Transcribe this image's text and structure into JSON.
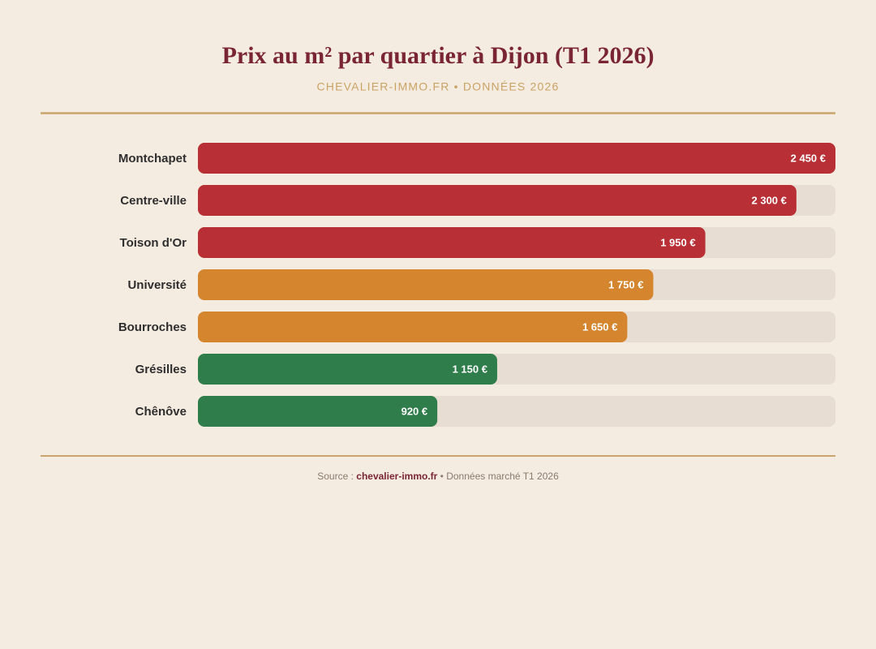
{
  "chart_data": {
    "type": "bar",
    "orientation": "horizontal",
    "title": "Prix au m² par quartier à Dijon (T1 2026)",
    "subtitle": "CHEVALIER-IMMO.FR • DONNÉES 2026",
    "categories": [
      "Montchapet",
      "Centre-ville",
      "Toison d'Or",
      "Université",
      "Bourroches",
      "Grésilles",
      "Chênôve"
    ],
    "values": [
      2450,
      2300,
      1950,
      1750,
      1650,
      1150,
      920
    ],
    "value_labels": [
      "2 450 €",
      "2 300 €",
      "1 950 €",
      "1 750 €",
      "1 650 €",
      "1 150 €",
      "920 €"
    ],
    "colors": [
      "#b83035",
      "#b83035",
      "#b83035",
      "#d4852d",
      "#d4852d",
      "#2e7d4a",
      "#2e7d4a"
    ],
    "track_color": "#e8ddd3",
    "xlim": [
      0,
      2450
    ]
  },
  "footer": {
    "prefix": "Source :",
    "link": "chevalier-immo.fr",
    "suffix": "• Données marché T1 2026"
  }
}
